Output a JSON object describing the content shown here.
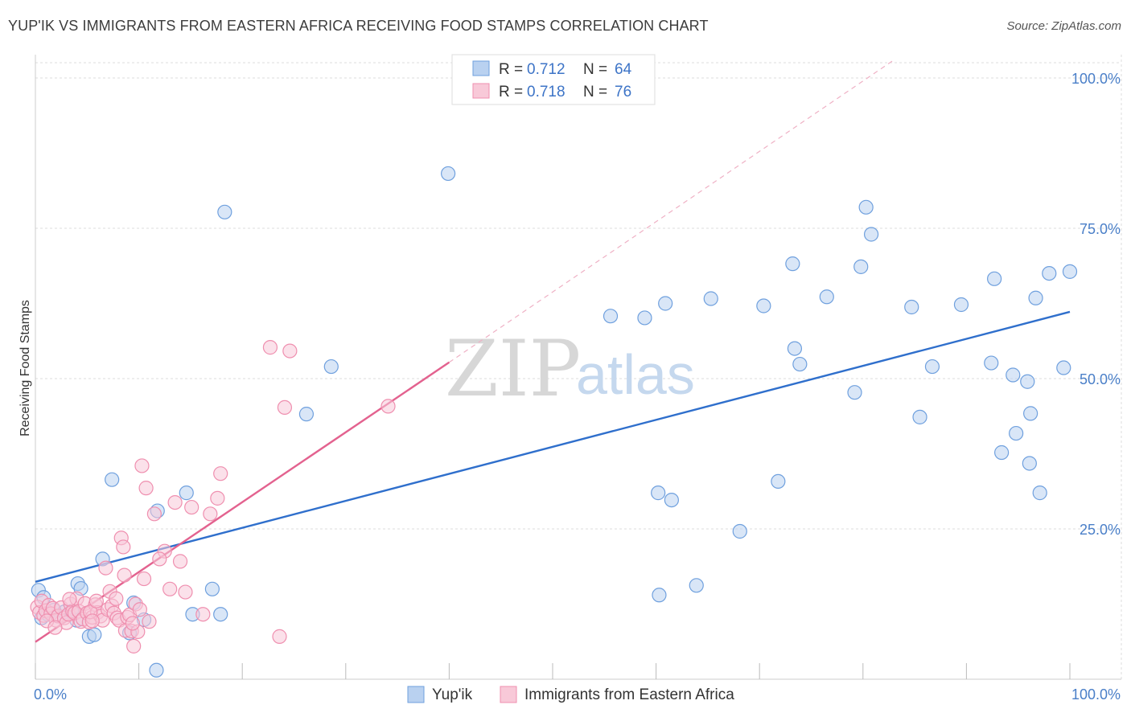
{
  "title": "YUP'IK VS IMMIGRANTS FROM EASTERN AFRICA RECEIVING FOOD STAMPS CORRELATION CHART",
  "source": "Source: ZipAtlas.com",
  "watermark": {
    "zip": "ZIP",
    "atlas": "atlas"
  },
  "chart_data": {
    "type": "scatter",
    "ylabel": "Receiving Food Stamps",
    "xlim": [
      0,
      100
    ],
    "ylim": [
      0,
      100
    ],
    "x_tick_labels": {
      "left": "0.0%",
      "right": "100.0%"
    },
    "y_ticks": [
      {
        "value": 25,
        "label": "25.0%"
      },
      {
        "value": 50,
        "label": "50.0%"
      },
      {
        "value": 75,
        "label": "75.0%"
      },
      {
        "value": 100,
        "label": "100.0%"
      }
    ],
    "grid": true,
    "legend": {
      "placement": "top-center",
      "entries": [
        {
          "r_label": "R = ",
          "r_value": "0.712",
          "n_label": "N = ",
          "n_value": "64"
        },
        {
          "r_label": "R = ",
          "r_value": "0.718",
          "n_label": "N = ",
          "n_value": "76"
        }
      ]
    },
    "series": [
      {
        "name": "Yup'ik",
        "color": "#6fa0de",
        "fill": "#b9d1f0",
        "trend": {
          "x0": 0,
          "y0": 16.2,
          "x1": 100,
          "y1": 61.1,
          "color": "#2f6fcc"
        },
        "points": [
          [
            0.3,
            14.8
          ],
          [
            0.6,
            10.2
          ],
          [
            1.2,
            10.8
          ],
          [
            1.8,
            11.5
          ],
          [
            2.2,
            10.5
          ],
          [
            2.8,
            11.2
          ],
          [
            3.5,
            11.3
          ],
          [
            4.0,
            9.8
          ],
          [
            4.1,
            15.9
          ],
          [
            4.4,
            15.1
          ],
          [
            5.2,
            7.1
          ],
          [
            5.7,
            7.4
          ],
          [
            6.5,
            20.0
          ],
          [
            7.4,
            33.2
          ],
          [
            9.1,
            7.7
          ],
          [
            9.5,
            12.7
          ],
          [
            10.5,
            9.9
          ],
          [
            11.7,
            1.5
          ],
          [
            11.8,
            28.0
          ],
          [
            14.6,
            31.0
          ],
          [
            15.2,
            10.8
          ],
          [
            17.1,
            15.0
          ],
          [
            17.9,
            10.8
          ],
          [
            18.3,
            77.7
          ],
          [
            26.2,
            44.1
          ],
          [
            28.6,
            52.0
          ],
          [
            39.9,
            84.1
          ],
          [
            55.6,
            60.4
          ],
          [
            58.9,
            60.1
          ],
          [
            60.2,
            31.0
          ],
          [
            60.3,
            14.0
          ],
          [
            60.9,
            62.5
          ],
          [
            61.5,
            29.8
          ],
          [
            63.9,
            15.6
          ],
          [
            65.3,
            63.3
          ],
          [
            68.1,
            24.6
          ],
          [
            70.4,
            62.1
          ],
          [
            71.8,
            32.9
          ],
          [
            73.2,
            69.1
          ],
          [
            73.4,
            55.0
          ],
          [
            73.9,
            52.4
          ],
          [
            76.5,
            63.6
          ],
          [
            79.2,
            47.7
          ],
          [
            79.8,
            68.6
          ],
          [
            80.8,
            74.0
          ],
          [
            80.3,
            78.5
          ],
          [
            84.7,
            61.9
          ],
          [
            85.5,
            43.6
          ],
          [
            86.7,
            52.0
          ],
          [
            89.5,
            62.3
          ],
          [
            92.4,
            52.6
          ],
          [
            92.7,
            66.6
          ],
          [
            93.4,
            37.7
          ],
          [
            94.5,
            50.6
          ],
          [
            94.8,
            40.9
          ],
          [
            95.9,
            49.5
          ],
          [
            96.1,
            35.9
          ],
          [
            96.7,
            63.4
          ],
          [
            96.2,
            44.2
          ],
          [
            97.1,
            31.0
          ],
          [
            98.0,
            67.5
          ],
          [
            99.4,
            51.8
          ],
          [
            100.0,
            67.8
          ],
          [
            0.8,
            13.6
          ]
        ]
      },
      {
        "name": "Immigrants from Eastern Africa",
        "color": "#ef8faf",
        "fill": "#f8c9d8",
        "trend": {
          "x0": 0,
          "y0": 6.2,
          "x1": 40,
          "y1": 52.7,
          "color": "#e3628f"
        },
        "trend_extension": {
          "x0": 40,
          "y0": 52.7,
          "x1": 83,
          "y1": 103.0,
          "color": "#efb1c5"
        },
        "points": [
          [
            0.2,
            12.0
          ],
          [
            0.4,
            11.1
          ],
          [
            0.6,
            13.0
          ],
          [
            0.8,
            10.6
          ],
          [
            1.0,
            11.4
          ],
          [
            1.3,
            12.3
          ],
          [
            1.5,
            10.9
          ],
          [
            1.7,
            11.8
          ],
          [
            2.0,
            9.8
          ],
          [
            2.2,
            10.5
          ],
          [
            2.5,
            11.9
          ],
          [
            2.8,
            10.2
          ],
          [
            3.0,
            9.4
          ],
          [
            3.2,
            10.8
          ],
          [
            3.4,
            12.5
          ],
          [
            3.6,
            11.3
          ],
          [
            3.8,
            11.0
          ],
          [
            4.0,
            13.4
          ],
          [
            4.2,
            11.3
          ],
          [
            4.4,
            9.6
          ],
          [
            4.6,
            10.0
          ],
          [
            4.8,
            12.6
          ],
          [
            5.0,
            11.0
          ],
          [
            5.2,
            9.5
          ],
          [
            5.5,
            10.3
          ],
          [
            5.8,
            12.4
          ],
          [
            6.0,
            11.1
          ],
          [
            6.3,
            10.5
          ],
          [
            6.5,
            9.8
          ],
          [
            6.8,
            18.5
          ],
          [
            7.0,
            11.6
          ],
          [
            7.2,
            14.6
          ],
          [
            7.4,
            12.2
          ],
          [
            7.6,
            11.0
          ],
          [
            7.9,
            10.2
          ],
          [
            8.1,
            9.8
          ],
          [
            8.3,
            23.5
          ],
          [
            8.5,
            22.0
          ],
          [
            8.7,
            8.1
          ],
          [
            8.9,
            10.3
          ],
          [
            9.1,
            10.7
          ],
          [
            9.3,
            8.0
          ],
          [
            9.5,
            5.5
          ],
          [
            9.7,
            12.5
          ],
          [
            9.9,
            7.9
          ],
          [
            10.1,
            11.6
          ],
          [
            10.3,
            35.5
          ],
          [
            10.5,
            16.7
          ],
          [
            10.7,
            31.8
          ],
          [
            11.0,
            9.6
          ],
          [
            11.5,
            27.5
          ],
          [
            12.5,
            21.3
          ],
          [
            13.0,
            15.0
          ],
          [
            13.5,
            29.4
          ],
          [
            14.0,
            19.6
          ],
          [
            14.5,
            14.5
          ],
          [
            15.1,
            28.6
          ],
          [
            16.2,
            10.8
          ],
          [
            16.9,
            27.5
          ],
          [
            17.6,
            30.1
          ],
          [
            17.9,
            34.2
          ],
          [
            22.7,
            55.2
          ],
          [
            23.6,
            7.1
          ],
          [
            24.1,
            45.2
          ],
          [
            24.6,
            54.6
          ],
          [
            1.1,
            9.7
          ],
          [
            1.9,
            8.6
          ],
          [
            3.3,
            13.3
          ],
          [
            5.3,
            11.2
          ],
          [
            5.9,
            13.0
          ],
          [
            7.8,
            13.4
          ],
          [
            8.6,
            17.3
          ],
          [
            9.4,
            9.3
          ],
          [
            5.5,
            9.7
          ],
          [
            34.1,
            45.4
          ],
          [
            12.0,
            20.0
          ]
        ]
      }
    ]
  }
}
